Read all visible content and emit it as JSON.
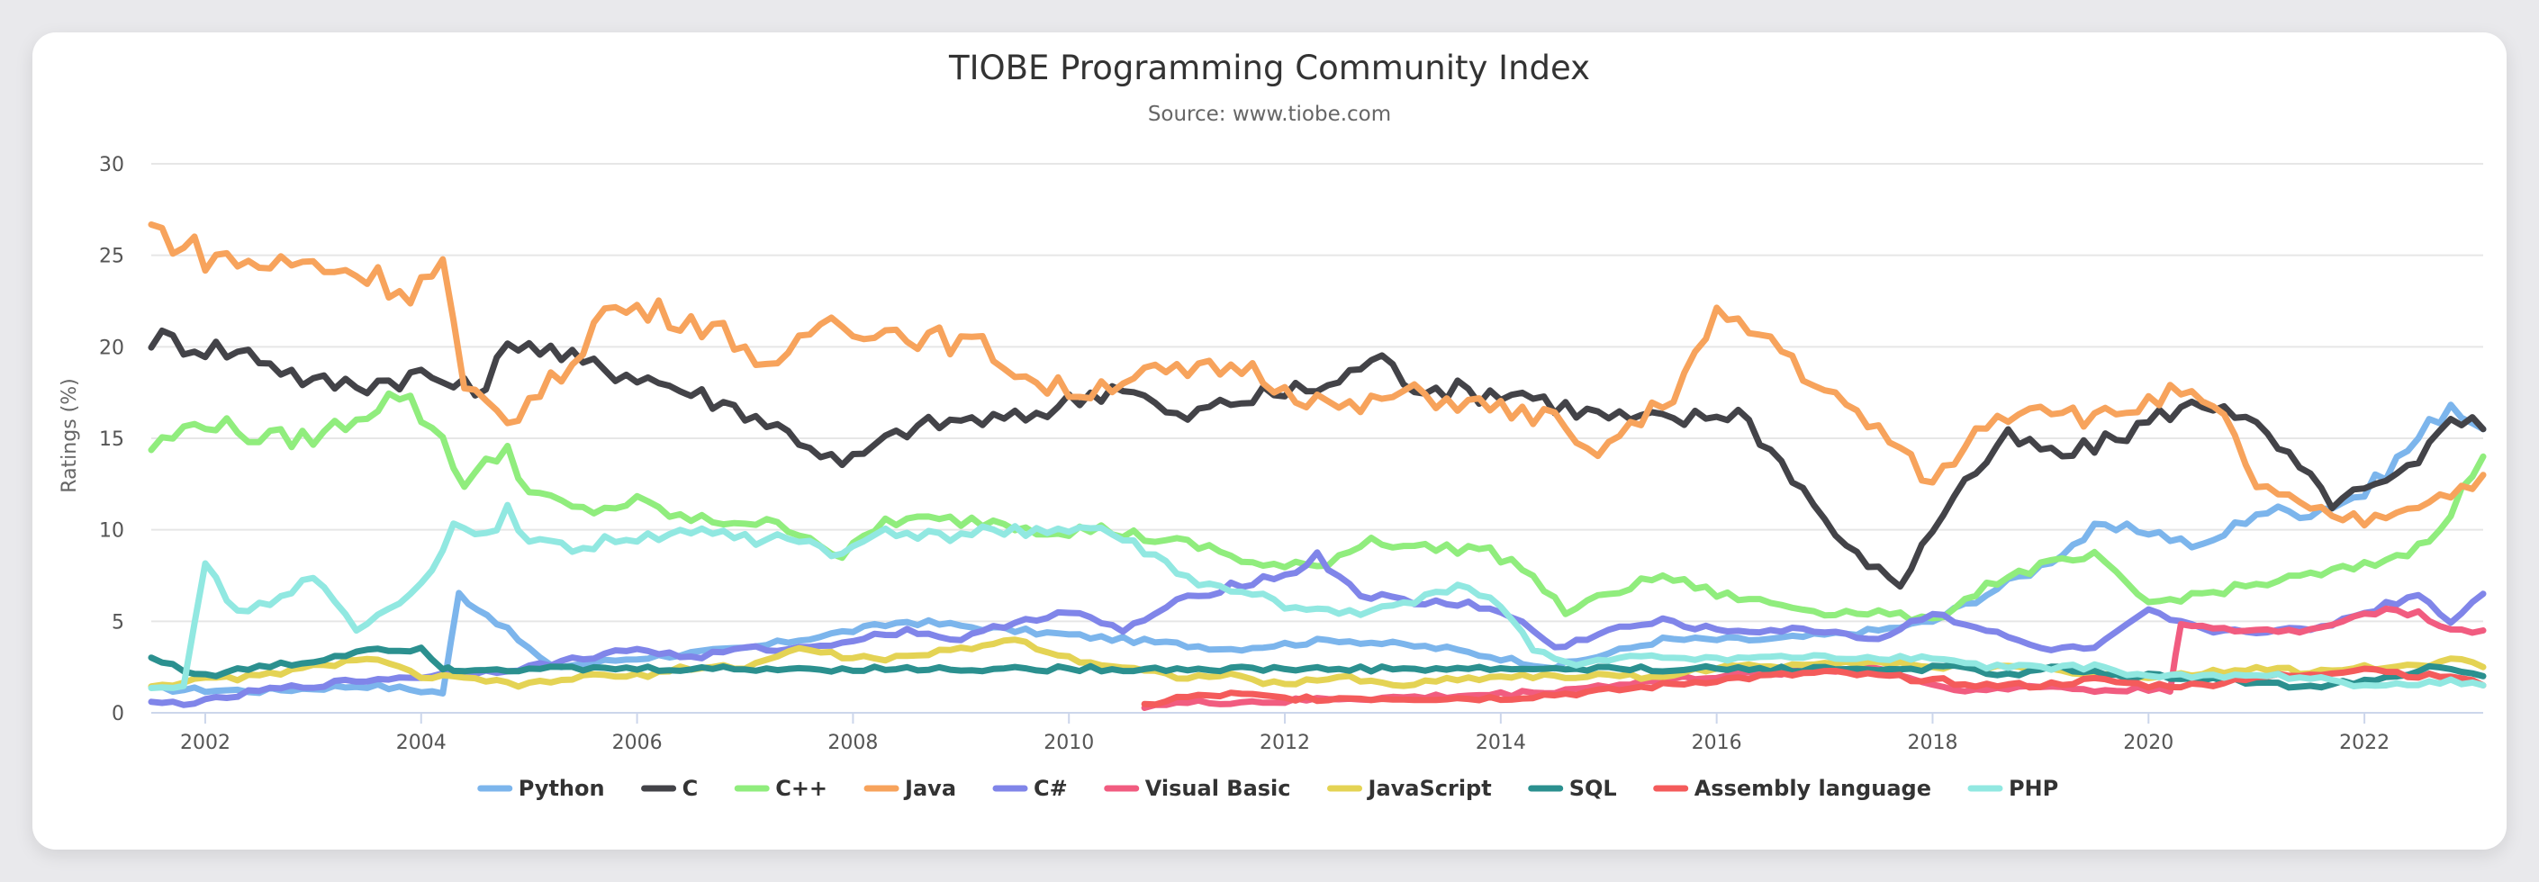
{
  "chart_data": {
    "type": "line",
    "title": "TIOBE Programming Community Index",
    "subtitle": "Source: www.tiobe.com",
    "ylabel": "Ratings (%)",
    "xlabel": "",
    "xlim": [
      2001.5,
      2023.1
    ],
    "ylim": [
      0,
      30
    ],
    "x_ticks": [
      "2002",
      "2004",
      "2006",
      "2008",
      "2010",
      "2012",
      "2014",
      "2016",
      "2018",
      "2020",
      "2022"
    ],
    "y_ticks": [
      "0",
      "5",
      "10",
      "15",
      "20",
      "25",
      "30"
    ],
    "grid": true,
    "legend": "bottom",
    "series": [
      {
        "name": "Python",
        "color": "#7cb5ec",
        "x": [
          2001.5,
          2002.5,
          2003.5,
          2004.2,
          2004.35,
          2004.7,
          2005.2,
          2006,
          2007,
          2008,
          2008.5,
          2009.5,
          2010.5,
          2011.5,
          2012.5,
          2013.5,
          2014.5,
          2015.5,
          2016.5,
          2017.5,
          2018.0,
          2018.5,
          2019,
          2019.5,
          2020.0,
          2020.5,
          2021.0,
          2021.5,
          2022.0,
          2022.5,
          2022.8,
          2023.1
        ],
        "y": [
          1.3,
          1.2,
          1.5,
          1.1,
          6.5,
          5.0,
          2.5,
          3.0,
          3.5,
          4.5,
          5.0,
          4.5,
          4.0,
          3.5,
          4.0,
          3.5,
          2.5,
          4.0,
          4.0,
          4.5,
          5.0,
          6.5,
          8.0,
          10.0,
          10.0,
          9.0,
          11.0,
          11.0,
          12.0,
          15.0,
          17.0,
          15.5
        ]
      },
      {
        "name": "C",
        "color": "#434348",
        "x": [
          2001.5,
          2002.0,
          2002.5,
          2003.0,
          2003.5,
          2004.0,
          2004.5,
          2004.9,
          2005.5,
          2006.0,
          2006.5,
          2007.0,
          2007.5,
          2007.9,
          2008.5,
          2009.0,
          2009.5,
          2010.0,
          2010.5,
          2011.0,
          2011.5,
          2012.0,
          2012.5,
          2012.8,
          2013.2,
          2013.7,
          2014.2,
          2014.7,
          2015.2,
          2015.7,
          2016.2,
          2016.7,
          2017.2,
          2017.7,
          2018.2,
          2018.7,
          2019.2,
          2019.7,
          2020.2,
          2020.7,
          2021.2,
          2021.7,
          2022.2,
          2022.5,
          2022.8,
          2023.1
        ],
        "y": [
          20.5,
          20.0,
          19.5,
          18.0,
          18.0,
          18.5,
          17.5,
          20.5,
          19.0,
          18.5,
          17.5,
          16.5,
          15.0,
          13.5,
          15.5,
          16.0,
          16.0,
          17.0,
          18.0,
          16.0,
          17.0,
          17.5,
          18.0,
          19.5,
          18.0,
          17.5,
          17.5,
          16.5,
          16.0,
          16.0,
          16.5,
          13.0,
          9.0,
          7.0,
          12.0,
          15.0,
          14.0,
          15.0,
          16.5,
          17.0,
          14.5,
          11.5,
          12.5,
          13.5,
          16.5,
          15.5
        ]
      },
      {
        "name": "C++",
        "color": "#90ed7d",
        "x": [
          2001.5,
          2002.0,
          2002.5,
          2003.0,
          2003.5,
          2003.8,
          2004.2,
          2004.4,
          2004.8,
          2005.0,
          2005.5,
          2006.0,
          2006.5,
          2007.0,
          2007.5,
          2007.9,
          2008.3,
          2008.8,
          2009.3,
          2009.8,
          2010.3,
          2010.8,
          2011.3,
          2011.8,
          2012.3,
          2012.8,
          2013.3,
          2013.8,
          2014.2,
          2014.6,
          2015.0,
          2015.5,
          2016.0,
          2016.5,
          2017.0,
          2017.5,
          2018.0,
          2018.5,
          2019.0,
          2019.5,
          2020.0,
          2020.5,
          2021.0,
          2021.5,
          2022.0,
          2022.5,
          2022.8,
          2023.1
        ],
        "y": [
          14.5,
          16.0,
          15.0,
          15.0,
          16.5,
          17.5,
          15.0,
          12.5,
          14.5,
          12.0,
          11.0,
          11.5,
          10.5,
          10.5,
          10.0,
          8.5,
          10.5,
          10.5,
          10.5,
          10.0,
          10.0,
          9.5,
          9.0,
          8.0,
          8.0,
          9.5,
          9.0,
          9.0,
          8.0,
          5.5,
          6.5,
          7.5,
          6.5,
          6.0,
          5.5,
          5.5,
          5.0,
          7.0,
          8.0,
          8.5,
          6.0,
          6.5,
          7.0,
          7.5,
          8.0,
          9.0,
          11.0,
          14.0
        ]
      },
      {
        "name": "Java",
        "color": "#f7a35c",
        "x": [
          2001.5,
          2002.0,
          2002.5,
          2003.0,
          2003.5,
          2003.9,
          2004.2,
          2004.4,
          2004.8,
          2005.3,
          2005.7,
          2006.1,
          2006.5,
          2006.9,
          2007.3,
          2007.7,
          2008.2,
          2008.7,
          2009.2,
          2009.7,
          2010.1,
          2010.6,
          2011.1,
          2011.6,
          2012.1,
          2012.6,
          2013.1,
          2013.6,
          2014.1,
          2014.5,
          2014.8,
          2015.2,
          2015.6,
          2016.0,
          2016.5,
          2017.0,
          2017.5,
          2018.0,
          2018.5,
          2019.0,
          2019.5,
          2020.0,
          2020.3,
          2020.7,
          2021.0,
          2021.5,
          2022.0,
          2022.5,
          2022.8,
          2023.1
        ],
        "y": [
          26.5,
          25.0,
          24.5,
          24.5,
          24.0,
          23.0,
          24.5,
          17.5,
          16.0,
          18.5,
          22.0,
          22.0,
          21.5,
          20.5,
          18.5,
          21.5,
          21.0,
          20.5,
          20.0,
          18.0,
          17.5,
          18.5,
          18.5,
          19.0,
          17.5,
          16.5,
          17.5,
          17.0,
          16.5,
          16.0,
          14.0,
          15.5,
          17.5,
          21.5,
          20.5,
          17.5,
          15.5,
          12.5,
          16.0,
          17.0,
          16.0,
          17.0,
          17.5,
          16.0,
          12.5,
          11.0,
          10.5,
          11.5,
          12.0,
          13.0
        ]
      },
      {
        "name": "C#",
        "color": "#8085e9",
        "x": [
          2001.5,
          2002.0,
          2002.5,
          2003.0,
          2003.5,
          2004.0,
          2004.5,
          2005.0,
          2005.5,
          2006.0,
          2006.5,
          2007.0,
          2007.5,
          2008.0,
          2008.5,
          2009.0,
          2009.5,
          2010.0,
          2010.5,
          2011.0,
          2011.5,
          2012.0,
          2012.3,
          2012.7,
          2013.2,
          2013.7,
          2014.2,
          2014.5,
          2015.0,
          2015.5,
          2016.0,
          2016.5,
          2017.0,
          2017.5,
          2018.0,
          2018.5,
          2019.0,
          2019.5,
          2020.0,
          2020.5,
          2021.0,
          2021.5,
          2022.0,
          2022.5,
          2022.8,
          2023.1
        ],
        "y": [
          0.5,
          0.6,
          1.2,
          1.5,
          1.8,
          2.0,
          2.2,
          2.5,
          3.0,
          3.5,
          3.0,
          3.5,
          3.5,
          4.0,
          4.5,
          4.0,
          5.0,
          5.5,
          4.5,
          6.0,
          7.0,
          7.5,
          8.5,
          6.5,
          6.0,
          6.0,
          5.0,
          3.5,
          4.5,
          5.0,
          4.5,
          4.5,
          4.5,
          4.0,
          5.5,
          4.5,
          3.5,
          3.5,
          5.5,
          4.5,
          4.5,
          4.5,
          5.5,
          6.5,
          5.0,
          6.5
        ]
      },
      {
        "name": "Visual Basic",
        "color": "#f15c80",
        "x": [
          2010.7,
          2011.0,
          2011.5,
          2012.0,
          2012.5,
          2013.0,
          2013.5,
          2014.0,
          2014.5,
          2015.0,
          2015.5,
          2016.0,
          2016.5,
          2017.0,
          2017.5,
          2018.0,
          2018.5,
          2019.0,
          2019.5,
          2020.0,
          2020.2,
          2020.3,
          2020.6,
          2021.0,
          2021.5,
          2022.0,
          2022.5,
          2022.8,
          2023.1
        ],
        "y": [
          0.4,
          0.5,
          0.6,
          0.6,
          0.8,
          0.8,
          0.9,
          1.0,
          1.2,
          1.5,
          1.8,
          2.0,
          2.2,
          2.3,
          2.5,
          1.5,
          1.2,
          1.5,
          1.2,
          1.3,
          1.3,
          5.0,
          4.5,
          4.5,
          4.5,
          5.5,
          5.5,
          4.5,
          4.5
        ]
      },
      {
        "name": "JavaScript",
        "color": "#e4d354",
        "x": [
          2001.5,
          2002.0,
          2002.5,
          2003.0,
          2003.5,
          2004.0,
          2004.5,
          2005.0,
          2005.5,
          2006.0,
          2006.5,
          2007.0,
          2007.5,
          2008.0,
          2008.5,
          2009.0,
          2009.5,
          2010.0,
          2010.5,
          2011.0,
          2011.5,
          2012.0,
          2012.5,
          2013.0,
          2013.5,
          2014.0,
          2014.5,
          2015.0,
          2015.5,
          2016.0,
          2016.5,
          2017.0,
          2017.5,
          2018.0,
          2018.5,
          2019.0,
          2019.5,
          2020.0,
          2020.5,
          2021.0,
          2021.5,
          2022.0,
          2022.5,
          2022.8,
          2023.1
        ],
        "y": [
          1.5,
          1.8,
          2.0,
          2.5,
          3.0,
          2.0,
          1.8,
          1.5,
          2.0,
          2.0,
          2.5,
          2.5,
          3.5,
          3.0,
          3.0,
          3.5,
          4.0,
          3.0,
          2.5,
          2.0,
          2.0,
          1.5,
          2.0,
          1.5,
          1.8,
          2.0,
          2.0,
          2.0,
          2.0,
          2.5,
          2.5,
          2.8,
          2.8,
          2.5,
          2.5,
          2.5,
          2.0,
          2.0,
          2.2,
          2.5,
          2.2,
          2.5,
          2.5,
          3.0,
          2.5
        ]
      },
      {
        "name": "SQL",
        "color": "#2b908f",
        "x": [
          2001.5,
          2002.0,
          2002.5,
          2003.0,
          2003.5,
          2004.0,
          2004.2,
          2004.3,
          2017.9,
          2018.3,
          2018.7,
          2019.2,
          2019.7,
          2020.2,
          2020.7,
          2021.2,
          2021.7,
          2022.2,
          2022.7,
          2023.1
        ],
        "y": [
          3.0,
          2.0,
          2.5,
          2.8,
          3.5,
          3.5,
          2.5,
          2.4,
          2.4,
          2.5,
          2.0,
          2.5,
          2.0,
          2.0,
          1.8,
          1.5,
          1.5,
          2.0,
          2.5,
          2.0
        ]
      },
      {
        "name": "Assembly language",
        "color": "#f45b5b",
        "x": [
          2010.7,
          2011.0,
          2011.5,
          2012.0,
          2012.5,
          2013.0,
          2013.5,
          2014.0,
          2014.5,
          2015.0,
          2015.5,
          2016.0,
          2016.5,
          2017.0,
          2017.5,
          2018.0,
          2018.5,
          2019.0,
          2019.5,
          2020.0,
          2020.5,
          2021.0,
          2021.5,
          2022.0,
          2022.5,
          2022.8,
          2023.1
        ],
        "y": [
          0.4,
          0.8,
          1.0,
          0.8,
          0.8,
          0.8,
          0.8,
          0.8,
          1.0,
          1.2,
          1.5,
          1.8,
          2.0,
          2.2,
          2.0,
          1.8,
          1.5,
          1.5,
          1.8,
          1.5,
          1.5,
          2.0,
          2.0,
          2.5,
          2.0,
          2.0,
          1.5
        ]
      },
      {
        "name": "PHP",
        "color": "#91e8e1",
        "x": [
          2001.5,
          2001.8,
          2002.0,
          2002.3,
          2002.6,
          2003.0,
          2003.4,
          2003.8,
          2004.0,
          2004.3,
          2004.6,
          2004.8,
          2005.0,
          2005.4,
          2005.8,
          2006.2,
          2006.6,
          2007.0,
          2007.5,
          2007.9,
          2008.3,
          2008.8,
          2009.3,
          2009.8,
          2010.3,
          2010.8,
          2011.2,
          2011.7,
          2012.2,
          2012.7,
          2013.2,
          2013.6,
          2014.0,
          2014.3,
          2014.7,
          2015.0,
          2015.5,
          2016.0,
          2016.5,
          2017.0,
          2017.5,
          2018.0,
          2018.5,
          2019.0,
          2019.5,
          2020.0,
          2020.5,
          2021.0,
          2021.5,
          2022.0,
          2022.5,
          2022.8,
          2023.1
        ],
        "y": [
          1.5,
          1.5,
          8.0,
          5.5,
          6.0,
          7.5,
          4.5,
          6.0,
          7.0,
          10.0,
          9.5,
          11.0,
          9.5,
          9.0,
          9.5,
          9.5,
          10.0,
          9.5,
          9.5,
          8.5,
          10.0,
          9.5,
          10.0,
          10.0,
          10.0,
          8.5,
          7.0,
          6.5,
          5.5,
          5.5,
          6.0,
          7.0,
          6.0,
          3.5,
          2.5,
          3.0,
          3.0,
          3.0,
          3.0,
          3.0,
          3.0,
          3.0,
          2.5,
          2.5,
          2.5,
          2.0,
          2.0,
          2.0,
          2.0,
          1.5,
          1.5,
          1.8,
          1.5
        ]
      }
    ]
  }
}
